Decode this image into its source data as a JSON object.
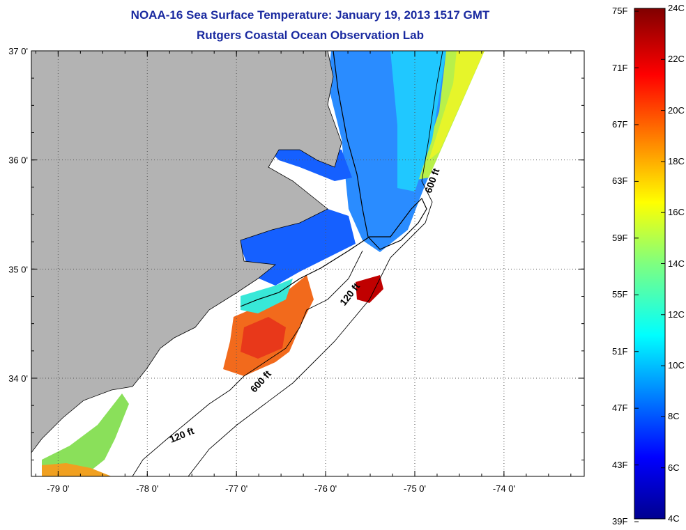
{
  "title": {
    "line1": "NOAA-16 Sea Surface Temperature:  January 19, 2013 1517 GMT",
    "line2": "Rutgers Coastal Ocean Observation Lab"
  },
  "colors": {
    "title": "#1a2aa0",
    "land": "#b3b3b3",
    "frame": "#000000",
    "grid": "#555555"
  },
  "map": {
    "lon_range": [
      -79.3,
      -73.1
    ],
    "lat_range": [
      33.1,
      37.0
    ],
    "lon_ticks": [
      {
        "value": -79,
        "label": "-79 0'"
      },
      {
        "value": -78,
        "label": "-78 0'"
      },
      {
        "value": -77,
        "label": "-77 0'"
      },
      {
        "value": -76,
        "label": "-76 0'"
      },
      {
        "value": -75,
        "label": "-75 0'"
      },
      {
        "value": -74,
        "label": "-74 0'"
      }
    ],
    "lat_ticks": [
      {
        "value": 37,
        "label": "37 0'"
      },
      {
        "value": 36,
        "label": "36 0'"
      },
      {
        "value": 35,
        "label": "35 0'"
      },
      {
        "value": 34,
        "label": "34 0'"
      }
    ],
    "grid": "dotted",
    "contour_labels": [
      {
        "text": "600 ft",
        "lon": -74.77,
        "lat": 35.8
      },
      {
        "text": "120 ft",
        "lon": -75.7,
        "lat": 34.75
      },
      {
        "text": "600 ft",
        "lon": -76.7,
        "lat": 33.95
      },
      {
        "text": "120 ft",
        "lon": -77.6,
        "lat": 33.45
      }
    ]
  },
  "colorbar": {
    "fahrenheit_labels": [
      "75F",
      "71F",
      "67F",
      "63F",
      "59F",
      "55F",
      "51F",
      "47F",
      "43F",
      "39F"
    ],
    "celsius_labels": [
      "24C",
      "22C",
      "20C",
      "18C",
      "16C",
      "14C",
      "12C",
      "10C",
      "8C",
      "6C",
      "4C"
    ],
    "range_c": [
      4,
      24
    ],
    "colormap": "jet"
  }
}
